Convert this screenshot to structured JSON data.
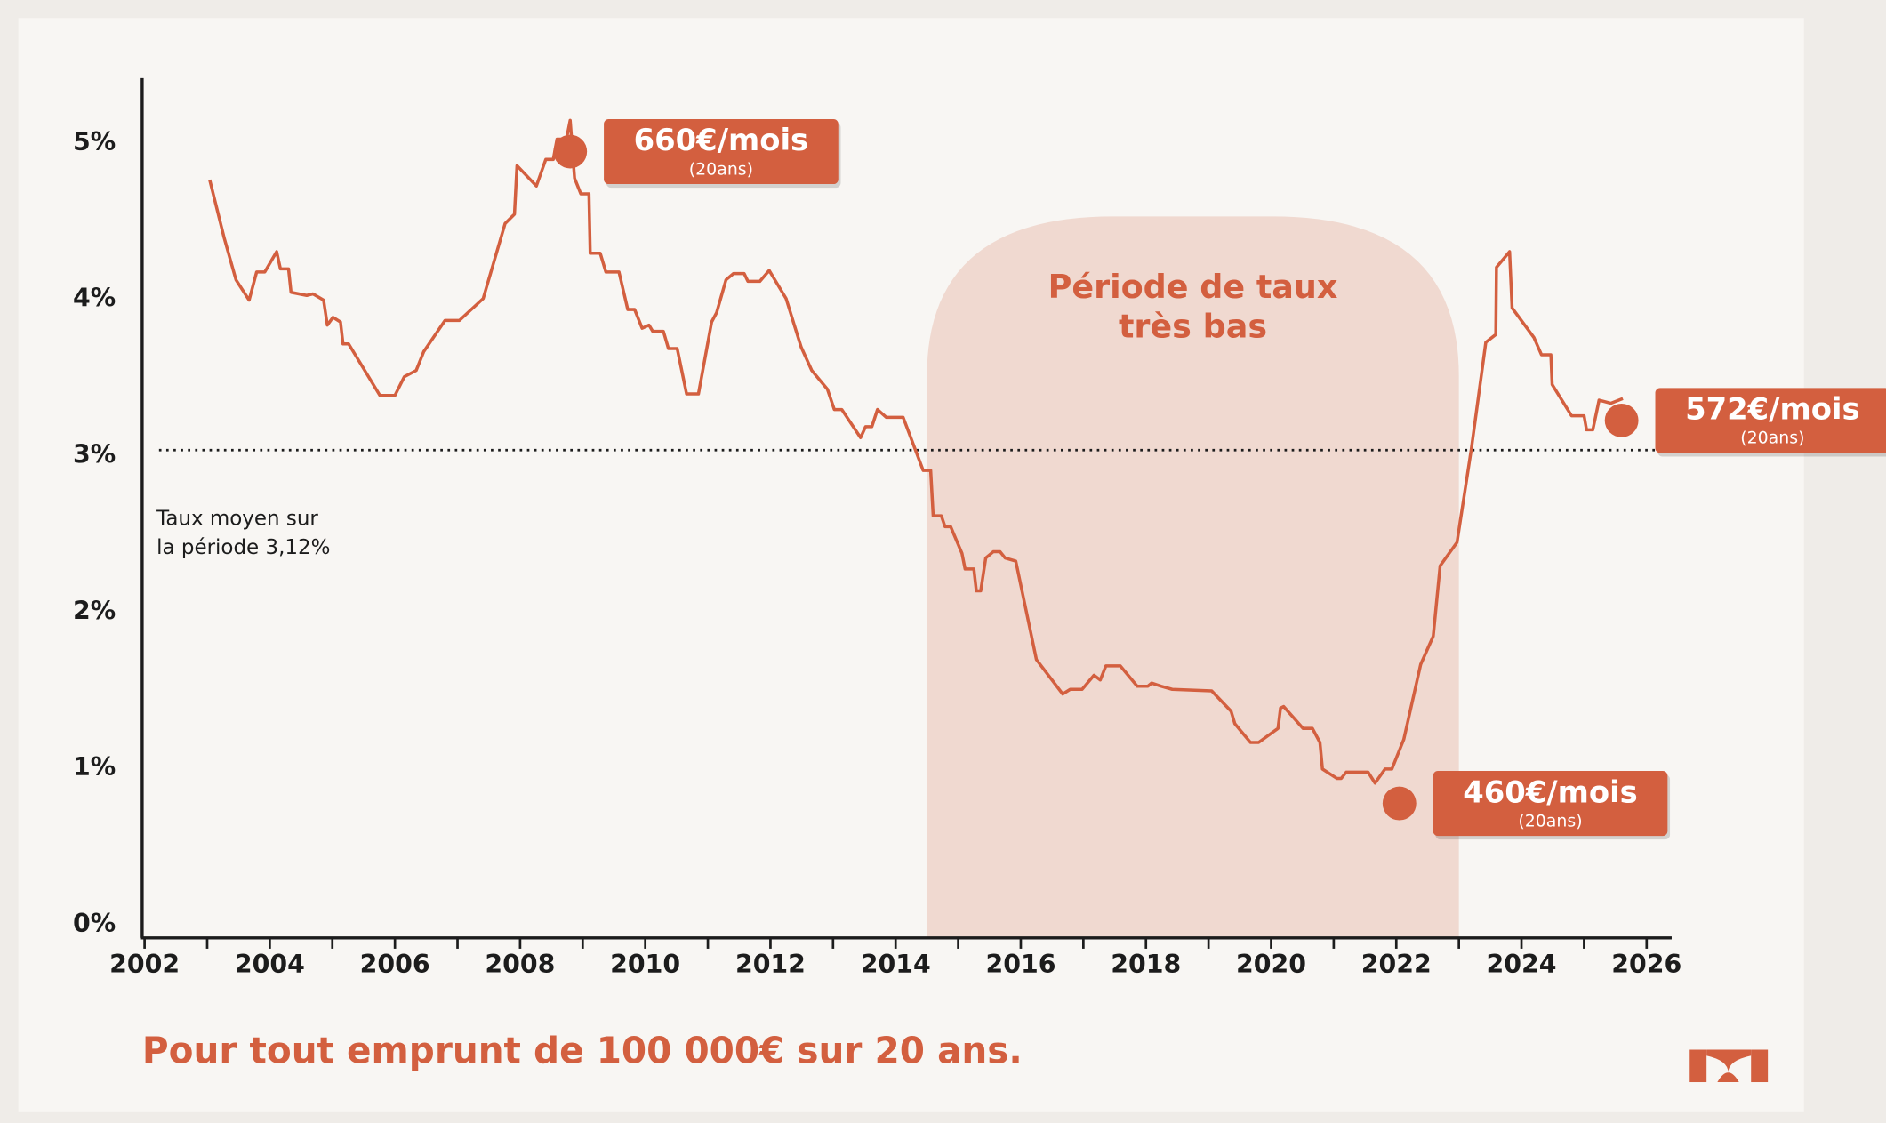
{
  "chart_data": {
    "type": "line",
    "caption": "Pour tout emprunt de 100 000€ sur 20 ans.",
    "xlim": [
      2002,
      2026.4
    ],
    "ylim": [
      0,
      5.5
    ],
    "xticks": [
      2002,
      2004,
      2006,
      2008,
      2010,
      2012,
      2014,
      2016,
      2018,
      2020,
      2022,
      2024,
      2026
    ],
    "xticks_minor": [
      2003,
      2005,
      2007,
      2009,
      2011,
      2013,
      2015,
      2017,
      2019,
      2021,
      2023,
      2025
    ],
    "yticks": [
      {
        "value": 0,
        "label": "0%"
      },
      {
        "value": 1,
        "label": "1%"
      },
      {
        "value": 2,
        "label": "2%"
      },
      {
        "value": 3,
        "label": "3%"
      },
      {
        "value": 4,
        "label": "4%"
      },
      {
        "value": 5,
        "label": "5%"
      }
    ],
    "series": [
      {
        "color": "#d35f3f",
        "x": [
          2003.04,
          2003.27,
          2003.46,
          2003.67,
          2003.79,
          2003.92,
          2004.11,
          2004.17,
          2004.3,
          2004.34,
          2004.59,
          2004.69,
          2004.86,
          2004.92,
          2005.01,
          2005.13,
          2005.17,
          2005.26,
          2005.76,
          2006.0,
          2006.15,
          2006.34,
          2006.46,
          2006.8,
          2007.03,
          2007.41,
          2007.76,
          2007.91,
          2007.95,
          2008.26,
          2008.41,
          2008.53,
          2008.59,
          2008.74,
          2008.8,
          2008.87,
          2008.97,
          2009.1,
          2009.12,
          2009.28,
          2009.37,
          2009.58,
          2009.72,
          2009.83,
          2009.95,
          2010.06,
          2010.12,
          2010.29,
          2010.37,
          2010.51,
          2010.66,
          2010.85,
          2011.06,
          2011.14,
          2011.29,
          2011.41,
          2011.58,
          2011.64,
          2011.83,
          2011.98,
          2012.25,
          2012.49,
          2012.66,
          2012.91,
          2013.02,
          2013.14,
          2013.44,
          2013.52,
          2013.62,
          2013.71,
          2013.85,
          2014.12,
          2014.44,
          2014.56,
          2014.6,
          2014.73,
          2014.79,
          2014.88,
          2015.06,
          2015.11,
          2015.25,
          2015.29,
          2015.36,
          2015.44,
          2015.56,
          2015.67,
          2015.75,
          2015.92,
          2016.25,
          2016.67,
          2016.79,
          2016.98,
          2017.17,
          2017.27,
          2017.36,
          2017.59,
          2017.86,
          2018.03,
          2018.09,
          2018.24,
          2018.42,
          2019.05,
          2019.36,
          2019.42,
          2019.67,
          2019.8,
          2020.11,
          2020.15,
          2020.2,
          2020.51,
          2020.66,
          2020.78,
          2020.82,
          2021.05,
          2021.12,
          2021.2,
          2021.55,
          2021.66,
          2021.82,
          2021.93,
          2022.12,
          2022.39,
          2022.59,
          2022.7,
          2022.97,
          2023.2,
          2023.43,
          2023.59,
          2023.6,
          2023.81,
          2023.85,
          2024.2,
          2024.32,
          2024.47,
          2024.49,
          2024.8,
          2025.0,
          2025.04,
          2025.14,
          2025.24,
          2025.43,
          2025.62
        ],
        "values": [
          4.85,
          4.48,
          4.21,
          4.08,
          4.26,
          4.26,
          4.39,
          4.28,
          4.28,
          4.13,
          4.11,
          4.12,
          4.08,
          3.92,
          3.97,
          3.94,
          3.8,
          3.8,
          3.47,
          3.47,
          3.59,
          3.63,
          3.75,
          3.95,
          3.95,
          4.09,
          4.57,
          4.63,
          4.94,
          4.81,
          4.98,
          4.98,
          5.11,
          5.11,
          5.23,
          4.86,
          4.76,
          4.76,
          4.38,
          4.38,
          4.26,
          4.26,
          4.02,
          4.02,
          3.9,
          3.92,
          3.88,
          3.88,
          3.77,
          3.77,
          3.48,
          3.48,
          3.94,
          4.0,
          4.21,
          4.25,
          4.25,
          4.2,
          4.2,
          4.27,
          4.09,
          3.78,
          3.63,
          3.51,
          3.38,
          3.38,
          3.2,
          3.27,
          3.27,
          3.38,
          3.33,
          3.33,
          2.99,
          2.99,
          2.7,
          2.7,
          2.63,
          2.63,
          2.46,
          2.36,
          2.36,
          2.22,
          2.22,
          2.43,
          2.47,
          2.47,
          2.43,
          2.41,
          1.78,
          1.56,
          1.59,
          1.59,
          1.68,
          1.65,
          1.74,
          1.74,
          1.61,
          1.61,
          1.63,
          1.61,
          1.59,
          1.58,
          1.45,
          1.37,
          1.25,
          1.25,
          1.34,
          1.47,
          1.48,
          1.34,
          1.34,
          1.25,
          1.08,
          1.02,
          1.02,
          1.06,
          1.06,
          0.99,
          1.08,
          1.08,
          1.27,
          1.75,
          1.93,
          2.38,
          2.53,
          3.13,
          3.81,
          3.86,
          4.29,
          4.39,
          4.03,
          3.84,
          3.73,
          3.73,
          3.54,
          3.34,
          3.34,
          3.25,
          3.25,
          3.44,
          3.42,
          3.45
        ]
      }
    ],
    "average": {
      "value": 3.12,
      "label_lines": [
        "Taux moyen sur",
        "la période 3,12%"
      ]
    },
    "region": {
      "x": [
        2014.5,
        2023.0
      ],
      "label_lines": [
        "Période de taux",
        "très bas"
      ]
    },
    "annotations": [
      {
        "x": 2008.8,
        "y": 5.03,
        "label": "660€/mois",
        "sublabel": "(20ans)"
      },
      {
        "x": 2022.05,
        "y": 0.86,
        "label": "460€/mois",
        "sublabel": "(20ans)"
      },
      {
        "x": 2025.6,
        "y": 3.31,
        "label": "572€/mois",
        "sublabel": "(20ans)"
      }
    ]
  }
}
